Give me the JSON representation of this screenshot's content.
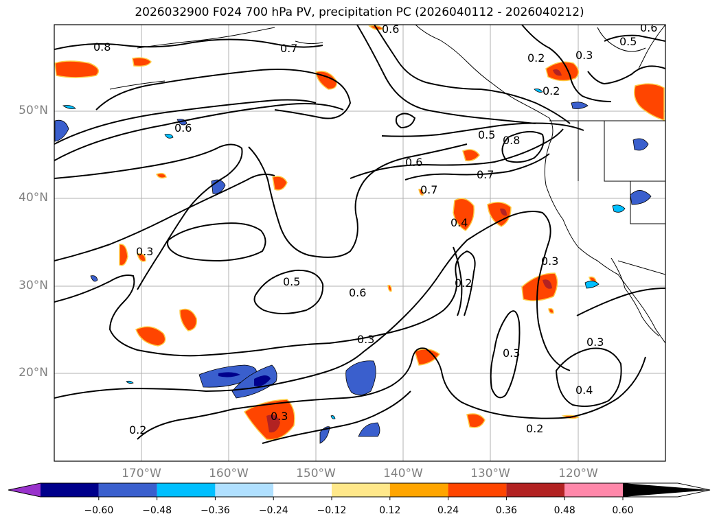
{
  "title": "2026032900 F024 700 hPa PV, precipitation PC (2026040112 - 2026040212)",
  "lat_labels": [
    "50°N",
    "40°N",
    "30°N",
    "20°N"
  ],
  "lon_labels": [
    "170°W",
    "160°W",
    "150°W",
    "140°W",
    "130°W",
    "120°W"
  ],
  "contour_labels": [
    "0.8",
    "0.7",
    "0.6",
    "0.6",
    "0.5",
    "0.8",
    "0.7",
    "0.6",
    "0.7",
    "0.4",
    "0.3",
    "0.5",
    "0.6",
    "0.2",
    "0.3",
    "0.3",
    "0.3",
    "0.3",
    "0.4",
    "0.2",
    "0.2",
    "0.3",
    "0.2",
    "0.3",
    "0.5",
    "0.6",
    "0.2"
  ],
  "colorbar": {
    "ticks": [
      "−0.60",
      "−0.48",
      "−0.36",
      "−0.24",
      "−0.12",
      "0.12",
      "0.24",
      "0.36",
      "0.48",
      "0.60"
    ],
    "colors": [
      "#9932cc",
      "#00008b",
      "#3a5fcd",
      "#00bfff",
      "#b0e0ff",
      "#ffffff",
      "#ffe88a",
      "#ffa500",
      "#ff4500",
      "#b22222",
      "#ff88aa"
    ]
  }
}
